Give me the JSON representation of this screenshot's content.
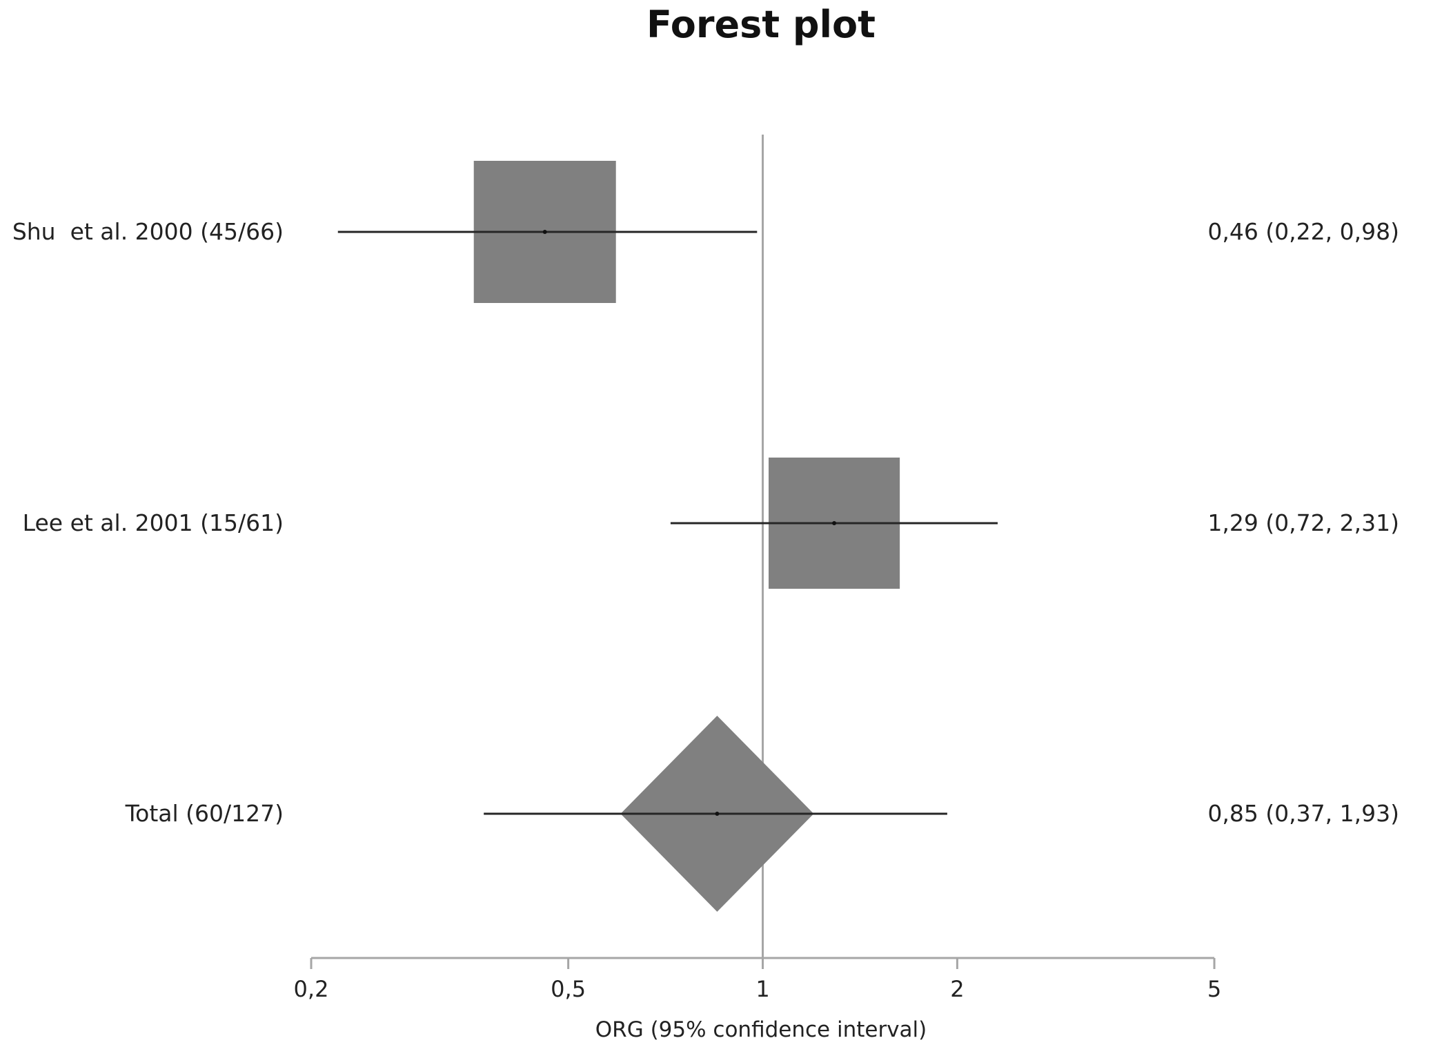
{
  "chart_data": {
    "type": "forest",
    "title": "Forest plot",
    "xlabel": "ORG (95% confidence interval)",
    "x_scale": "log",
    "xlim": [
      0.2,
      5
    ],
    "x_ticks": [
      0.2,
      0.5,
      1,
      2,
      5
    ],
    "x_tick_labels": [
      "0,2",
      "0,5",
      "1",
      "2",
      "5"
    ],
    "reference_line": 1,
    "studies": [
      {
        "label": "Shu  et al. 2000 (45/66)",
        "estimate": 0.46,
        "ci_low": 0.22,
        "ci_high": 0.98,
        "summary": "0,46 (0,22, 0,98)",
        "marker": "square",
        "weight": 0.54
      },
      {
        "label": "Lee et al. 2001 (15/61)",
        "estimate": 1.29,
        "ci_low": 0.72,
        "ci_high": 2.31,
        "summary": "1,29 (0,72, 2,31)",
        "marker": "square",
        "weight": 0.46
      },
      {
        "label": "Total (60/127)",
        "estimate": 0.85,
        "ci_low": 0.37,
        "ci_high": 1.93,
        "summary": "0,85 (0,37, 1,93)",
        "marker": "diamond"
      }
    ],
    "colors": {
      "marker_fill": "#808080",
      "ci_line": "#262626",
      "reference_line": "#a6a6a6",
      "axis": "#a6a6a6",
      "text": "#222222"
    }
  }
}
